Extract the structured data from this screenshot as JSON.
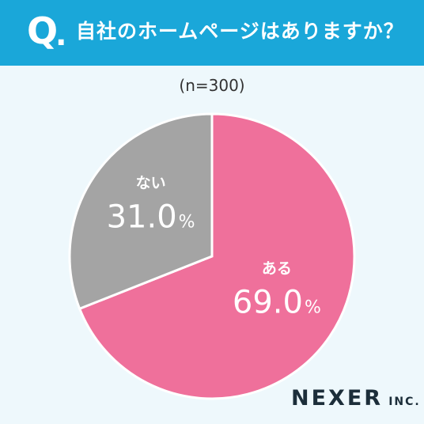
{
  "header": {
    "q_mark": "Q",
    "q_dot": ".",
    "question": "自社のホームページはありますか？"
  },
  "sample": "(n=300)",
  "chart_data": {
    "type": "pie",
    "title": "自社のホームページはありますか？",
    "n": "(n=300)",
    "slices": [
      {
        "label": "ある",
        "value": 69.0,
        "display": "69.0",
        "unit": "%",
        "color": "#ef709b"
      },
      {
        "label": "ない",
        "value": 31.0,
        "display": "31.0",
        "unit": "%",
        "color": "#a4a4a4"
      }
    ],
    "start": "12 o'clock",
    "direction": "clockwise"
  },
  "logo": {
    "main": "NEXER",
    "inc": "INC."
  }
}
